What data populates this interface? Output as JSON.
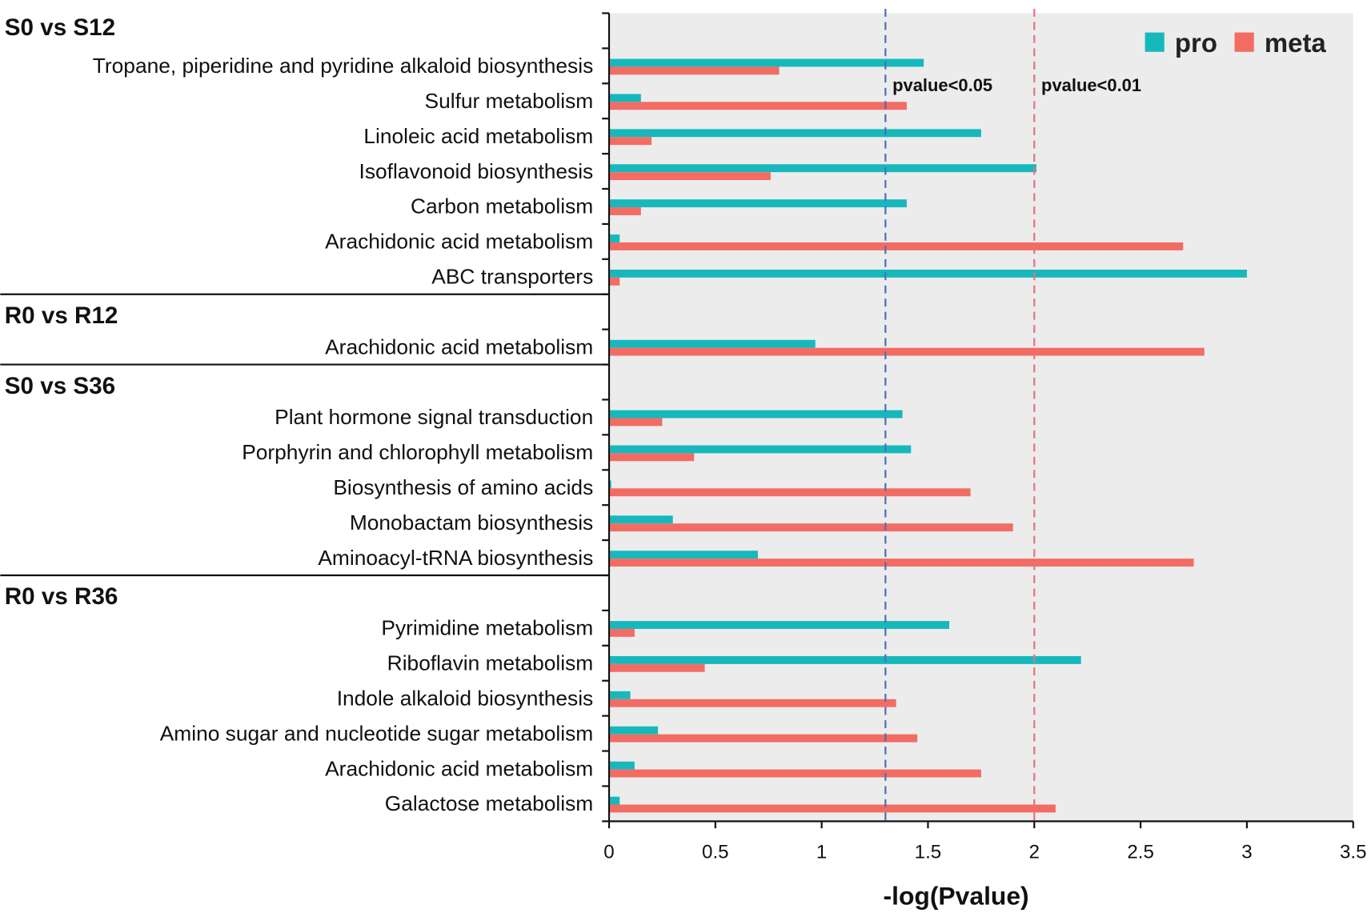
{
  "chart_data": {
    "type": "bar",
    "orientation": "horizontal",
    "xlabel": "-log(Pvalue)",
    "xlim": [
      0,
      3.5
    ],
    "xticks": [
      "0",
      "0.5",
      "1",
      "1.5",
      "2",
      "2.5",
      "3",
      "3.5"
    ],
    "legend": {
      "position": "top-right",
      "entries": [
        "pro",
        "meta"
      ]
    },
    "colors": {
      "pro": "#17b8bc",
      "meta": "#f26c64",
      "background": "#ececec",
      "thr05": "#4a6fb5",
      "thr01": "#e8707a"
    },
    "thresholds": [
      {
        "label": "pvalue<0.05",
        "value": 1.3
      },
      {
        "label": "pvalue<0.01",
        "value": 2.0
      }
    ],
    "groups": [
      {
        "name": "S0 vs S12",
        "rows": [
          {
            "label": "Tropane, piperidine and pyridine alkaloid biosynthesis",
            "pro": 1.48,
            "meta": 0.8
          },
          {
            "label": "Sulfur metabolism",
            "pro": 0.15,
            "meta": 1.4
          },
          {
            "label": "Linoleic acid metabolism",
            "pro": 1.75,
            "meta": 0.2
          },
          {
            "label": "Isoflavonoid biosynthesis",
            "pro": 2.01,
            "meta": 0.76
          },
          {
            "label": "Carbon metabolism",
            "pro": 1.4,
            "meta": 0.15
          },
          {
            "label": "Arachidonic acid metabolism",
            "pro": 0.05,
            "meta": 2.7
          },
          {
            "label": "ABC transporters",
            "pro": 3.0,
            "meta": 0.05
          }
        ]
      },
      {
        "name": "R0 vs R12",
        "rows": [
          {
            "label": "Arachidonic acid metabolism",
            "pro": 0.97,
            "meta": 2.8
          }
        ]
      },
      {
        "name": "S0 vs S36",
        "rows": [
          {
            "label": "Plant hormone signal transduction",
            "pro": 1.38,
            "meta": 0.25
          },
          {
            "label": "Porphyrin and chlorophyll metabolism",
            "pro": 1.42,
            "meta": 0.4
          },
          {
            "label": "Biosynthesis of amino acids",
            "pro": 0.01,
            "meta": 1.7
          },
          {
            "label": "Monobactam biosynthesis",
            "pro": 0.3,
            "meta": 1.9
          },
          {
            "label": "Aminoacyl-tRNA biosynthesis",
            "pro": 0.7,
            "meta": 2.75
          }
        ]
      },
      {
        "name": "R0 vs R36",
        "rows": [
          {
            "label": "Pyrimidine metabolism",
            "pro": 1.6,
            "meta": 0.12
          },
          {
            "label": "Riboflavin metabolism",
            "pro": 2.22,
            "meta": 0.45
          },
          {
            "label": "Indole alkaloid biosynthesis",
            "pro": 0.1,
            "meta": 1.35
          },
          {
            "label": "Amino sugar and nucleotide sugar metabolism",
            "pro": 0.23,
            "meta": 1.45
          },
          {
            "label": "Arachidonic acid metabolism",
            "pro": 0.12,
            "meta": 1.75
          },
          {
            "label": "Galactose metabolism",
            "pro": 0.05,
            "meta": 2.1
          }
        ]
      }
    ]
  }
}
